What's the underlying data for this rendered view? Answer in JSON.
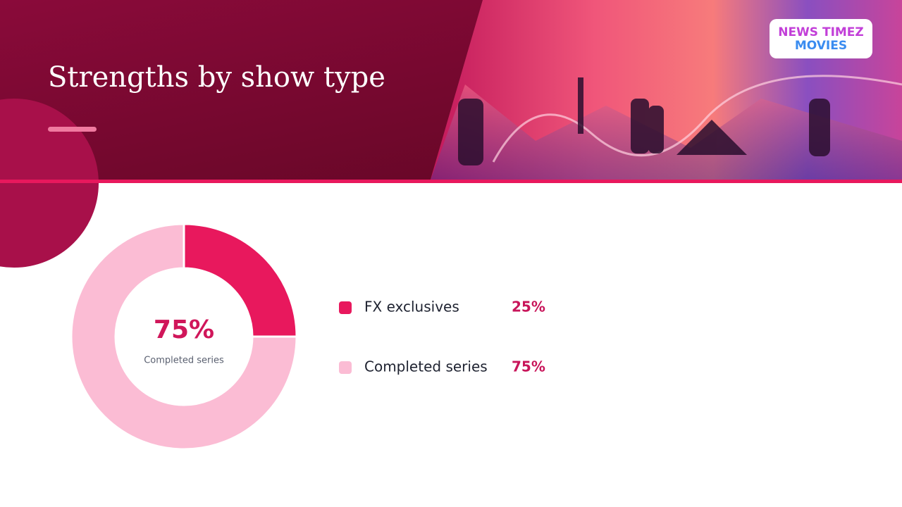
{
  "header": {
    "logo": [
      "NEWS TIMEZ",
      "MOVIES"
    ]
  },
  "chart_data": {
    "type": "donut",
    "title": "Strengths by show type",
    "categories": [
      "FX exclusives",
      "Completed series"
    ],
    "values": [
      25,
      75
    ],
    "value_labels": [
      "25%",
      "75%"
    ],
    "colors": [
      "#e8185d",
      "#fbbcd4"
    ]
  }
}
